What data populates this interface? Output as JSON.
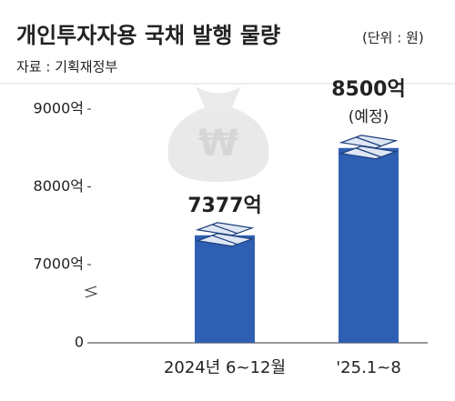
{
  "chart_data": {
    "type": "bar",
    "title": "개인투자자용 국채 발행 물량",
    "unit": "(단위 : 원)",
    "source": "자료 : 기획재정부",
    "categories": [
      "2024년 6~12월",
      "'25.1~8"
    ],
    "values": [
      7377,
      8500
    ],
    "value_labels": [
      "7377억",
      "8500억"
    ],
    "annotations": [
      null,
      "(예정)"
    ],
    "color": "#2f5fb3",
    "ylim": [
      0,
      9000
    ],
    "axis_break": [
      0,
      7000
    ],
    "yticks": [
      0,
      {
        "value": 7000,
        "label": "7000억"
      },
      {
        "value": 8000,
        "label": "8000억"
      },
      {
        "value": 9000,
        "label": "9000억"
      }
    ]
  }
}
